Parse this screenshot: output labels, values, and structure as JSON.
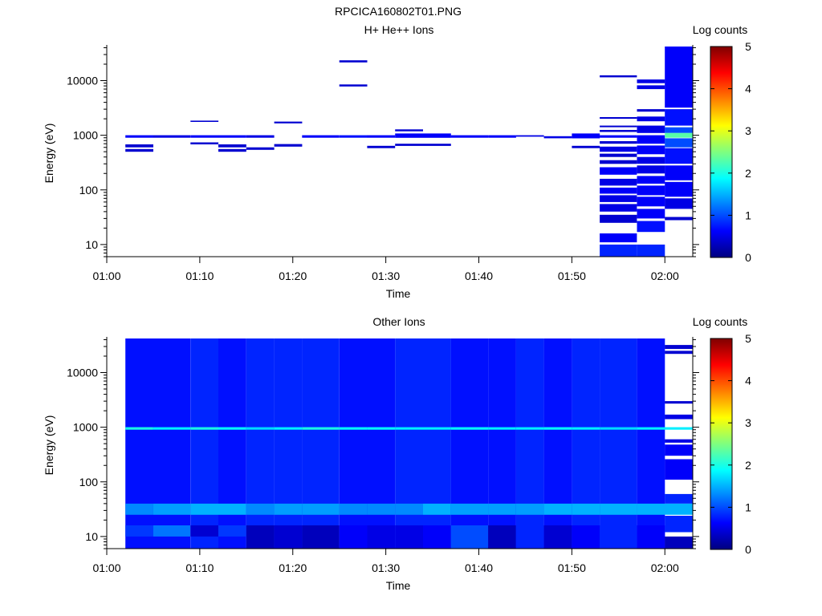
{
  "page": {
    "title": "RPCICA160802T01.PNG"
  },
  "colormap": {
    "stops": [
      "#00007f",
      "#0000ff",
      "#007fff",
      "#00ffff",
      "#7fff7f",
      "#ffff00",
      "#ff7f00",
      "#ff0000",
      "#7f0000"
    ]
  },
  "chart_data": [
    {
      "type": "heatmap",
      "title": "H+ He++ Ions",
      "xlabel": "Time",
      "ylabel": "Energy (eV)",
      "yscale": "log",
      "ylim": [
        6,
        45000
      ],
      "xlim": [
        "01:00",
        "02:03"
      ],
      "x_ticks": [
        "01:00",
        "01:10",
        "01:20",
        "01:30",
        "01:40",
        "01:50",
        "02:00"
      ],
      "y_ticks": [
        10,
        100,
        1000,
        10000
      ],
      "colorbar": {
        "label": "Log counts",
        "ticks": [
          "0",
          "1",
          "2",
          "3",
          "4",
          "5"
        ],
        "range": [
          0,
          5
        ]
      },
      "grid": false,
      "columns": [
        {
          "t0": "01:02",
          "t1": "01:05",
          "cells": [
            [
              900,
              1000,
              0.6
            ],
            [
              600,
              680,
              0.4
            ],
            [
              500,
              560,
              0.4
            ]
          ]
        },
        {
          "t0": "01:05",
          "t1": "01:09",
          "cells": [
            [
              900,
              1000,
              0.5
            ]
          ]
        },
        {
          "t0": "01:09",
          "t1": "01:12",
          "cells": [
            [
              1750,
              1850,
              0.4
            ],
            [
              900,
              1000,
              0.6
            ],
            [
              680,
              740,
              0.4
            ]
          ]
        },
        {
          "t0": "01:12",
          "t1": "01:15",
          "cells": [
            [
              900,
              1000,
              0.6
            ],
            [
              600,
              680,
              0.4
            ],
            [
              500,
              560,
              0.4
            ]
          ]
        },
        {
          "t0": "01:15",
          "t1": "01:18",
          "cells": [
            [
              900,
              1000,
              0.5
            ],
            [
              540,
              600,
              0.4
            ]
          ]
        },
        {
          "t0": "01:18",
          "t1": "01:21",
          "cells": [
            [
              1650,
              1780,
              0.4
            ],
            [
              620,
              690,
              0.4
            ]
          ]
        },
        {
          "t0": "01:21",
          "t1": "01:25",
          "cells": [
            [
              900,
              1000,
              0.6
            ]
          ]
        },
        {
          "t0": "01:25",
          "t1": "01:28",
          "cells": [
            [
              21500,
              23500,
              0.4
            ],
            [
              7800,
              8500,
              0.4
            ],
            [
              900,
              1000,
              0.7
            ]
          ]
        },
        {
          "t0": "01:28",
          "t1": "01:31",
          "cells": [
            [
              900,
              1000,
              0.6
            ],
            [
              580,
              640,
              0.4
            ]
          ]
        },
        {
          "t0": "01:31",
          "t1": "01:34",
          "cells": [
            [
              1180,
              1280,
              0.4
            ],
            [
              900,
              1080,
              0.6
            ],
            [
              640,
              700,
              0.4
            ]
          ]
        },
        {
          "t0": "01:34",
          "t1": "01:37",
          "cells": [
            [
              900,
              1080,
              0.6
            ],
            [
              640,
              700,
              0.4
            ]
          ]
        },
        {
          "t0": "01:37",
          "t1": "01:41",
          "cells": [
            [
              900,
              1000,
              0.6
            ]
          ]
        },
        {
          "t0": "01:41",
          "t1": "01:44",
          "cells": [
            [
              900,
              1000,
              0.6
            ]
          ]
        },
        {
          "t0": "01:44",
          "t1": "01:47",
          "cells": [
            [
              940,
              1000,
              0.5
            ]
          ]
        },
        {
          "t0": "01:47",
          "t1": "01:50",
          "cells": [
            [
              880,
              960,
              0.5
            ]
          ]
        },
        {
          "t0": "01:50",
          "t1": "01:53",
          "cells": [
            [
              880,
              1080,
              0.6
            ],
            [
              580,
              640,
              0.4
            ]
          ]
        },
        {
          "t0": "01:53",
          "t1": "01:57",
          "cells": [
            [
              11500,
              12500,
              0.4
            ],
            [
              2000,
              2150,
              0.4
            ],
            [
              1400,
              1500,
              0.4
            ],
            [
              1150,
              1250,
              0.4
            ],
            [
              900,
              1000,
              0.6
            ],
            [
              700,
              780,
              0.4
            ],
            [
              500,
              620,
              0.5
            ],
            [
              400,
              460,
              0.4
            ],
            [
              300,
              350,
              0.4
            ],
            [
              190,
              260,
              0.6
            ],
            [
              120,
              160,
              0.5
            ],
            [
              85,
              110,
              0.6
            ],
            [
              60,
              80,
              0.5
            ],
            [
              40,
              55,
              0.5
            ],
            [
              25,
              35,
              0.4
            ],
            [
              11,
              16,
              0.6
            ],
            [
              6,
              10,
              0.8
            ]
          ]
        },
        {
          "t0": "01:57",
          "t1": "02:00",
          "cells": [
            [
              9000,
              10500,
              0.5
            ],
            [
              7000,
              8200,
              0.5
            ],
            [
              2700,
              3000,
              0.4
            ],
            [
              1800,
              2200,
              0.5
            ],
            [
              1100,
              1500,
              0.5
            ],
            [
              700,
              1000,
              0.6
            ],
            [
              450,
              650,
              0.6
            ],
            [
              300,
              400,
              0.5
            ],
            [
              200,
              280,
              0.5
            ],
            [
              130,
              180,
              0.6
            ],
            [
              80,
              120,
              0.6
            ],
            [
              50,
              75,
              0.6
            ],
            [
              30,
              45,
              0.6
            ],
            [
              17,
              27,
              0.7
            ],
            [
              6,
              10,
              0.8
            ]
          ]
        },
        {
          "t0": "02:00",
          "t1": "02:03",
          "cells": [
            [
              3200,
              42000,
              0.6
            ],
            [
              1500,
              3000,
              0.7
            ],
            [
              1100,
              1400,
              1.0
            ],
            [
              900,
              1100,
              2.3
            ],
            [
              600,
              880,
              1.0
            ],
            [
              300,
              580,
              0.7
            ],
            [
              150,
              280,
              0.6
            ],
            [
              75,
              140,
              0.6
            ],
            [
              45,
              70,
              0.5
            ],
            [
              28,
              32,
              0.4
            ]
          ]
        }
      ]
    },
    {
      "type": "heatmap",
      "title": "Other Ions",
      "xlabel": "Time",
      "ylabel": "Energy (eV)",
      "yscale": "log",
      "ylim": [
        6,
        45000
      ],
      "xlim": [
        "01:00",
        "02:03"
      ],
      "x_ticks": [
        "01:00",
        "01:10",
        "01:20",
        "01:30",
        "01:40",
        "01:50",
        "02:00"
      ],
      "y_ticks": [
        10,
        100,
        1000,
        10000
      ],
      "colorbar": {
        "label": "Log counts",
        "ticks": [
          "0",
          "1",
          "2",
          "3",
          "4",
          "5"
        ],
        "range": [
          0,
          5
        ]
      },
      "grid": false,
      "columns": [
        {
          "t0": "01:02",
          "t1": "01:05",
          "cells": [
            [
              6,
              42000,
              0.7
            ],
            [
              900,
              1000,
              2.0
            ],
            [
              25,
              40,
              1.3
            ],
            [
              10,
              16,
              0.9
            ]
          ]
        },
        {
          "t0": "01:05",
          "t1": "01:09",
          "cells": [
            [
              6,
              42000,
              0.7
            ],
            [
              900,
              1000,
              1.8
            ],
            [
              25,
              40,
              1.4
            ],
            [
              10,
              16,
              1.2
            ]
          ]
        },
        {
          "t0": "01:09",
          "t1": "01:12",
          "cells": [
            [
              6,
              42000,
              0.8
            ],
            [
              900,
              1000,
              2.0
            ],
            [
              25,
              40,
              1.5
            ],
            [
              10,
              16,
              0.4
            ]
          ]
        },
        {
          "t0": "01:12",
          "t1": "01:15",
          "cells": [
            [
              6,
              42000,
              0.7
            ],
            [
              900,
              1000,
              1.9
            ],
            [
              25,
              40,
              1.5
            ],
            [
              10,
              16,
              0.9
            ]
          ]
        },
        {
          "t0": "01:15",
          "t1": "01:18",
          "cells": [
            [
              6,
              42000,
              0.8
            ],
            [
              900,
              1000,
              1.7
            ],
            [
              25,
              40,
              1.3
            ],
            [
              6,
              16,
              0.3
            ]
          ]
        },
        {
          "t0": "01:18",
          "t1": "01:21",
          "cells": [
            [
              6,
              42000,
              0.8
            ],
            [
              900,
              1000,
              1.8
            ],
            [
              25,
              40,
              1.4
            ],
            [
              6,
              16,
              0.4
            ]
          ]
        },
        {
          "t0": "01:21",
          "t1": "01:25",
          "cells": [
            [
              6,
              42000,
              0.8
            ],
            [
              900,
              1000,
              2.0
            ],
            [
              25,
              40,
              1.4
            ],
            [
              6,
              16,
              0.3
            ]
          ]
        },
        {
          "t0": "01:25",
          "t1": "01:28",
          "cells": [
            [
              6,
              42000,
              0.7
            ],
            [
              900,
              1000,
              1.9
            ],
            [
              25,
              40,
              1.3
            ],
            [
              6,
              16,
              0.6
            ]
          ]
        },
        {
          "t0": "01:28",
          "t1": "01:31",
          "cells": [
            [
              6,
              42000,
              0.7
            ],
            [
              900,
              1000,
              1.9
            ],
            [
              25,
              40,
              1.3
            ],
            [
              6,
              16,
              0.5
            ]
          ]
        },
        {
          "t0": "01:31",
          "t1": "01:34",
          "cells": [
            [
              6,
              42000,
              0.8
            ],
            [
              900,
              1000,
              1.8
            ],
            [
              25,
              40,
              1.3
            ],
            [
              6,
              16,
              0.5
            ]
          ]
        },
        {
          "t0": "01:34",
          "t1": "01:37",
          "cells": [
            [
              6,
              42000,
              0.8
            ],
            [
              900,
              1000,
              1.8
            ],
            [
              25,
              40,
              1.5
            ],
            [
              6,
              16,
              0.6
            ]
          ]
        },
        {
          "t0": "01:37",
          "t1": "01:41",
          "cells": [
            [
              6,
              42000,
              0.7
            ],
            [
              900,
              1000,
              1.9
            ],
            [
              25,
              40,
              1.4
            ],
            [
              6,
              16,
              1.0
            ]
          ]
        },
        {
          "t0": "01:41",
          "t1": "01:44",
          "cells": [
            [
              6,
              42000,
              0.7
            ],
            [
              900,
              1000,
              1.8
            ],
            [
              25,
              40,
              1.4
            ],
            [
              6,
              16,
              0.3
            ]
          ]
        },
        {
          "t0": "01:44",
          "t1": "01:47",
          "cells": [
            [
              6,
              42000,
              0.8
            ],
            [
              900,
              1000,
              1.8
            ],
            [
              25,
              40,
              1.4
            ],
            [
              6,
              16,
              0.8
            ]
          ]
        },
        {
          "t0": "01:47",
          "t1": "01:50",
          "cells": [
            [
              6,
              42000,
              0.7
            ],
            [
              900,
              1000,
              1.9
            ],
            [
              25,
              40,
              1.5
            ],
            [
              6,
              16,
              0.4
            ]
          ]
        },
        {
          "t0": "01:50",
          "t1": "01:53",
          "cells": [
            [
              6,
              42000,
              0.8
            ],
            [
              900,
              1000,
              1.8
            ],
            [
              25,
              40,
              1.5
            ],
            [
              6,
              16,
              0.6
            ]
          ]
        },
        {
          "t0": "01:53",
          "t1": "01:57",
          "cells": [
            [
              6,
              42000,
              0.8
            ],
            [
              900,
              1000,
              1.7
            ],
            [
              25,
              40,
              1.5
            ],
            [
              6,
              16,
              0.8
            ]
          ]
        },
        {
          "t0": "01:57",
          "t1": "02:00",
          "cells": [
            [
              6,
              42000,
              0.7
            ],
            [
              900,
              1000,
              1.8
            ],
            [
              25,
              40,
              1.5
            ],
            [
              6,
              16,
              0.6
            ]
          ]
        },
        {
          "t0": "02:00",
          "t1": "02:03",
          "cells": [
            [
              27000,
              32000,
              0.4
            ],
            [
              22000,
              25000,
              0.4
            ],
            [
              2700,
              3000,
              0.4
            ],
            [
              1400,
              1700,
              0.5
            ],
            [
              900,
              1000,
              1.8
            ],
            [
              520,
              600,
              0.5
            ],
            [
              300,
              480,
              0.6
            ],
            [
              110,
              260,
              0.6
            ],
            [
              40,
              60,
              0.8
            ],
            [
              25,
              40,
              1.5
            ],
            [
              12,
              24,
              0.8
            ],
            [
              6,
              10,
              0.3
            ]
          ]
        }
      ]
    }
  ]
}
